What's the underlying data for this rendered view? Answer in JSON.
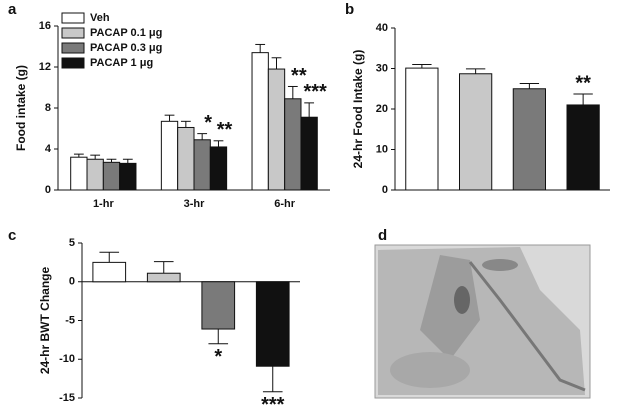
{
  "chart_data": [
    {
      "type": "bar",
      "panel": "a",
      "y_label": "Food intake (g)",
      "categories": [
        "1-hr",
        "3-hr",
        "6-hr"
      ],
      "series": [
        {
          "name": "Veh",
          "color": "#ffffff",
          "values": [
            3.2,
            6.7,
            13.4
          ],
          "errors": [
            0.3,
            0.6,
            0.8
          ],
          "stars": [
            null,
            null,
            null
          ]
        },
        {
          "name": "PACAP 0.1 μg",
          "color": "#c8c8c8",
          "values": [
            3.0,
            6.1,
            11.8
          ],
          "errors": [
            0.4,
            0.6,
            1.1
          ],
          "stars": [
            null,
            null,
            null
          ]
        },
        {
          "name": "PACAP 0.3 μg",
          "color": "#7a7a7a",
          "values": [
            2.7,
            4.9,
            8.9
          ],
          "errors": [
            0.3,
            0.6,
            1.2
          ],
          "stars": [
            null,
            "*",
            "**"
          ]
        },
        {
          "name": "PACAP 1 μg",
          "color": "#111111",
          "values": [
            2.6,
            4.2,
            7.1
          ],
          "errors": [
            0.4,
            0.6,
            1.4
          ],
          "stars": [
            null,
            "**",
            "***"
          ]
        }
      ],
      "ylim": [
        0,
        16
      ],
      "yticks": [
        0,
        4,
        8,
        12,
        16
      ],
      "legend": "upper-left"
    },
    {
      "type": "bar",
      "panel": "b",
      "y_label": "24-hr Food Intake (g)",
      "categories": [
        null,
        null,
        null,
        null
      ],
      "values": [
        30.1,
        28.7,
        25.0,
        21.0
      ],
      "errors": [
        0.9,
        1.2,
        1.3,
        2.7
      ],
      "colors": [
        "#ffffff",
        "#c8c8c8",
        "#7a7a7a",
        "#111111"
      ],
      "stars": [
        null,
        null,
        null,
        "**"
      ],
      "ylim": [
        0,
        40
      ],
      "yticks": [
        0,
        10,
        20,
        30,
        40
      ]
    },
    {
      "type": "bar",
      "panel": "c",
      "y_label": "24-hr BWT Change",
      "categories": [
        null,
        null,
        null,
        null
      ],
      "values": [
        2.5,
        1.1,
        -6.1,
        -10.9
      ],
      "errors": [
        1.3,
        1.5,
        1.9,
        3.3
      ],
      "colors": [
        "#ffffff",
        "#c8c8c8",
        "#7a7a7a",
        "#111111"
      ],
      "stars": [
        null,
        null,
        "*",
        "***"
      ],
      "ylim": [
        -15,
        5
      ],
      "yticks": [
        -15,
        -10,
        -5,
        0,
        5
      ]
    }
  ],
  "image_panel": {
    "label": "d"
  }
}
